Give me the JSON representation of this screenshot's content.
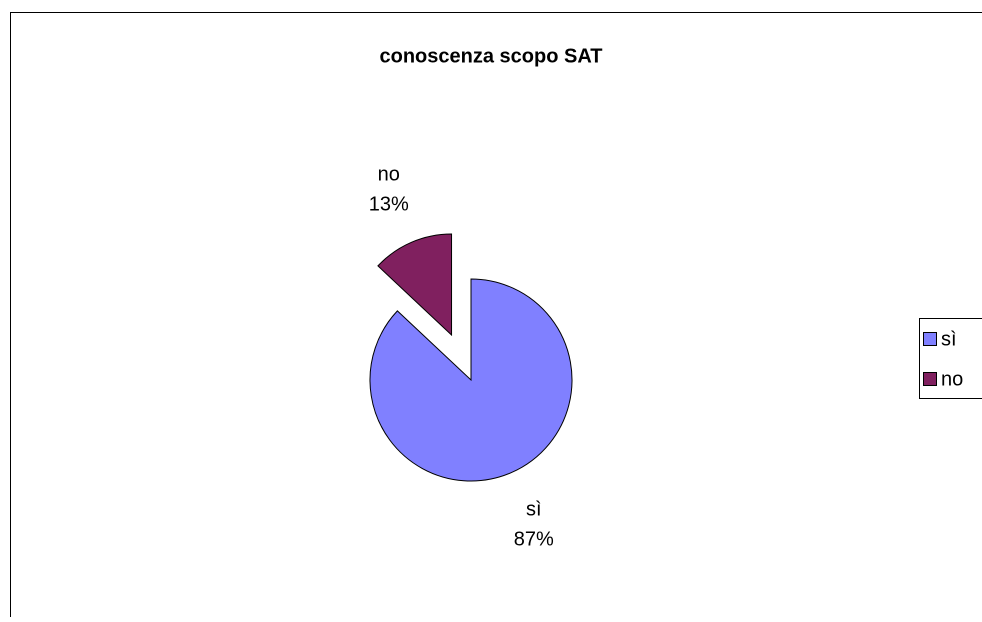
{
  "chart_data": {
    "type": "pie",
    "title": "conoscenza scopo SAT",
    "categories": [
      "sì",
      "no"
    ],
    "values": [
      87,
      13
    ],
    "value_labels": [
      "87%",
      "13%"
    ],
    "colors": [
      "#8080ff",
      "#80205f"
    ],
    "exploded": [
      false,
      true
    ],
    "legend": "right"
  }
}
